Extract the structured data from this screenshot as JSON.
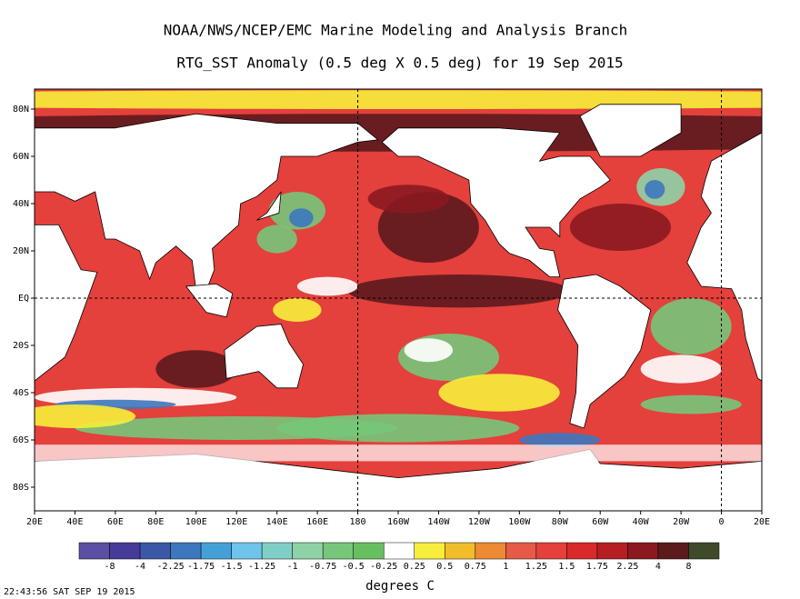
{
  "map": {
    "title": "NOAA/NWS/NCEP/EMC Marine Modeling and Analysis Branch",
    "subtitle": "RTG_SST Anomaly (0.5 deg X 0.5 deg) for 19 Sep 2015",
    "lon_labels": [
      "20E",
      "40E",
      "60E",
      "80E",
      "100E",
      "120E",
      "140E",
      "160E",
      "180",
      "160W",
      "140W",
      "120W",
      "100W",
      "80W",
      "60W",
      "40W",
      "20W",
      "0",
      "20E"
    ],
    "lat_labels": [
      "80N",
      "60N",
      "40N",
      "20N",
      "EQ",
      "20S",
      "40S",
      "60S",
      "80S"
    ]
  },
  "colorbar": {
    "labels": [
      "-8",
      "-4",
      "-2.25",
      "-1.75",
      "-1.5",
      "-1.25",
      "-1",
      "-0.75",
      "-0.5",
      "-0.25",
      "0.25",
      "0.5",
      "0.75",
      "1",
      "1.25",
      "1.5",
      "1.75",
      "2.25",
      "4",
      "8"
    ],
    "colors": [
      "#5b4fa3",
      "#463b98",
      "#3a58a6",
      "#3d78be",
      "#46a0d8",
      "#6ec4ea",
      "#80cfc6",
      "#8ed3a6",
      "#76c77a",
      "#66c060",
      "#ffffff",
      "#f6ee3a",
      "#f1bd2b",
      "#ec8a35",
      "#e65a47",
      "#e4403c",
      "#d92a2a",
      "#b51e22",
      "#8a1a1f",
      "#5c1a1d",
      "#3e4a2a"
    ],
    "unit": "degrees C"
  },
  "timestamp": "22:43:56  SAT SEP 19 2015"
}
